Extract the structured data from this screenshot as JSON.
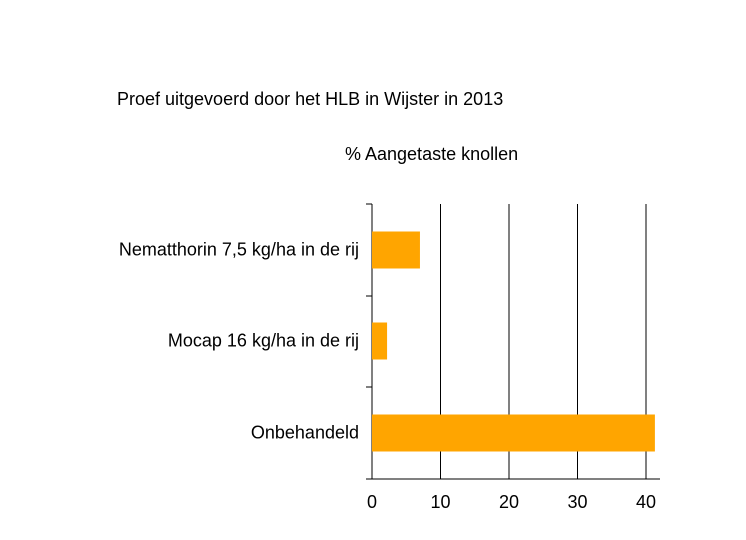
{
  "chart_data": {
    "type": "bar",
    "orientation": "horizontal",
    "title": "Proef uitgevoerd door het HLB in Wijster in 2013",
    "xlabel": "% Aangetaste knollen",
    "ylabel": "",
    "categories": [
      "Nematthorin 7,5 kg/ha in de rij",
      "Mocap 16 kg/ha in de rij",
      "Onbehandeld"
    ],
    "values": [
      7,
      2.2,
      41.3
    ],
    "xlim": [
      0,
      42
    ],
    "xticks": [
      "0",
      "10",
      "20",
      "30",
      "40"
    ],
    "grid": true,
    "bar_color": "#FFA500"
  }
}
